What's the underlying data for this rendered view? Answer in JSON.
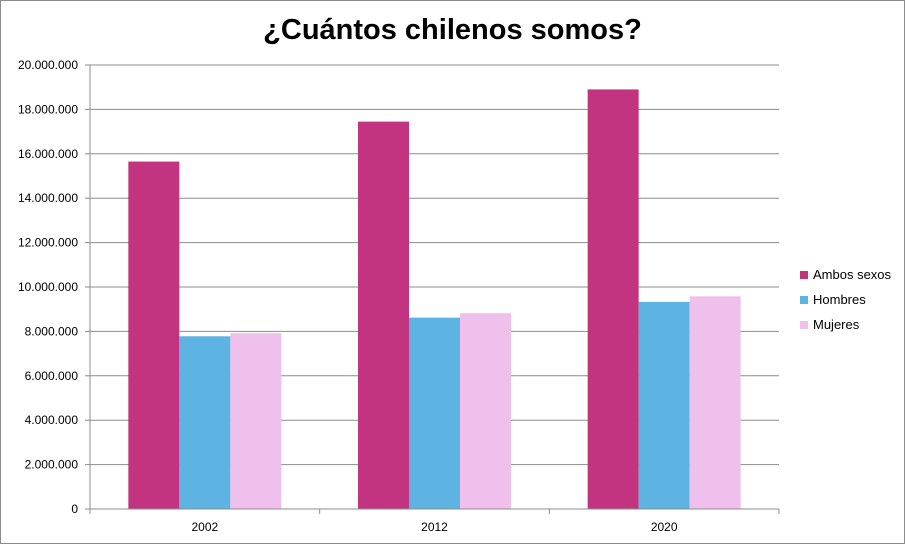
{
  "chart_data": {
    "type": "bar",
    "title": "¿Cuántos chilenos somos?",
    "xlabel": "",
    "ylabel": "",
    "categories": [
      "2002",
      "2012",
      "2020"
    ],
    "series": [
      {
        "name": "Ambos sexos",
        "color": "#c2347f",
        "values": [
          15650000,
          17450000,
          18900000
        ]
      },
      {
        "name": "Hombres",
        "color": "#5db4e3",
        "values": [
          7780000,
          8620000,
          9330000
        ]
      },
      {
        "name": "Mujeres",
        "color": "#f0c0ec",
        "values": [
          7920000,
          8820000,
          9580000
        ]
      }
    ],
    "ylim": [
      0,
      20000000
    ],
    "yticks": [
      "0",
      "2.000.000",
      "4.000.000",
      "6.000.000",
      "8.000.000",
      "10.000.000",
      "12.000.000",
      "14.000.000",
      "16.000.000",
      "18.000.000",
      "20.000.000"
    ],
    "grid": true,
    "legend_position": "right"
  }
}
